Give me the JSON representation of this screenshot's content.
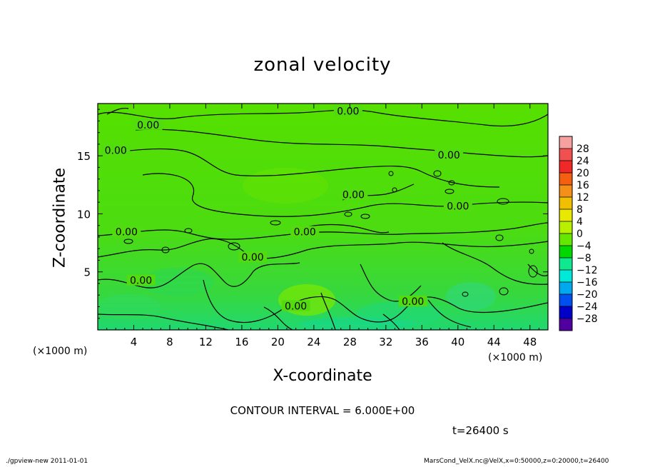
{
  "chart_data": {
    "type": "heatmap",
    "title": "zonal velocity",
    "xlabel": "X-coordinate",
    "ylabel": "Z-coordinate",
    "x_unit_note": "(×1000 m)",
    "y_unit_note": "(×1000 m)",
    "xlim": [
      0,
      50
    ],
    "ylim": [
      0,
      19.5
    ],
    "x_ticks": [
      4,
      8,
      12,
      16,
      20,
      24,
      28,
      32,
      36,
      40,
      44,
      48
    ],
    "y_ticks": [
      5,
      10,
      15
    ],
    "colorbar": {
      "labels": [
        28,
        24,
        20,
        16,
        12,
        8,
        4,
        0,
        -4,
        -8,
        -12,
        -16,
        -20,
        -24,
        -28
      ],
      "colors": [
        "#f6a0a0",
        "#f05050",
        "#f02828",
        "#f46010",
        "#f49018",
        "#f0c000",
        "#e8e800",
        "#b8f000",
        "#64e800",
        "#00d800",
        "#10e890",
        "#00e8d8",
        "#00a8f0",
        "#0050f0",
        "#0000c8",
        "#5000a0"
      ]
    },
    "contour_labels": [
      {
        "value": "0.00",
        "x": 27.8,
        "y": 18.8
      },
      {
        "value": "0.00",
        "x": 5.6,
        "y": 17.6
      },
      {
        "value": "0.00",
        "x": 2.0,
        "y": 15.4
      },
      {
        "value": "0.00",
        "x": 39.0,
        "y": 15.0
      },
      {
        "value": "0.00",
        "x": 28.4,
        "y": 11.6
      },
      {
        "value": "0.00",
        "x": 40.0,
        "y": 10.6
      },
      {
        "value": "0.00",
        "x": 3.2,
        "y": 8.4
      },
      {
        "value": "0.00",
        "x": 23.0,
        "y": 8.4
      },
      {
        "value": "0.00",
        "x": 17.2,
        "y": 6.2
      },
      {
        "value": "0.00",
        "x": 4.8,
        "y": 4.2
      },
      {
        "value": "0.00",
        "x": 22.0,
        "y": 2.0
      },
      {
        "value": "0.00",
        "x": 35.0,
        "y": 2.4
      }
    ],
    "contour_interval": "CONTOUR INTERVAL = 6.000E+00",
    "time": "t=26400 s"
  },
  "footer": {
    "left": "./gpview-new   2011-01-01",
    "right": "MarsCond_VelX.nc@VelX,x=0:50000,z=0:20000,t=26400"
  }
}
